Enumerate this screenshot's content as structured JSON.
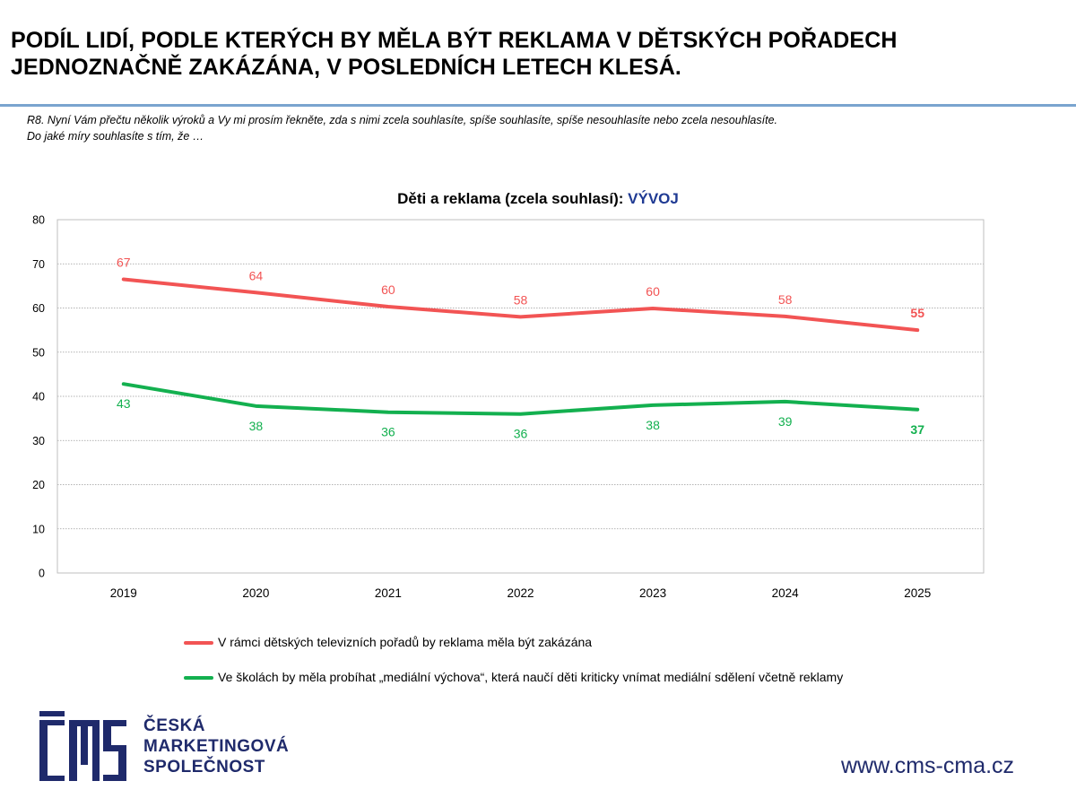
{
  "header": {
    "title_line1": "PODÍL LIDÍ, PODLE KTERÝCH BY MĚLA BÝT REKLAMA V DĚTSKÝCH POŘADECH",
    "title_line2": "JEDNOZNAČNĚ ZAKÁZÁNA, V POSLEDNÍCH LETECH KLESÁ.",
    "question_line1": "R8. Nyní Vám přečtu několik výroků a Vy mi prosím řekněte, zda s nimi zcela souhlasíte, spíše souhlasíte, spíše nesouhlasíte nebo zcela nesouhlasíte.",
    "question_line2": "Do jaké míry souhlasíte s tím, že …"
  },
  "chart_data": {
    "type": "line",
    "title": "Děti a reklama (zcela souhlasí): ",
    "title_accent": "VÝVOJ",
    "categories": [
      "2019",
      "2020",
      "2021",
      "2022",
      "2023",
      "2024",
      "2025"
    ],
    "ylim": [
      0,
      80
    ],
    "yticks": [
      0,
      10,
      20,
      30,
      40,
      50,
      60,
      70,
      80
    ],
    "grid": true,
    "series": [
      {
        "name": "V rámci dětských televizních pořadů by reklama měla být zakázána",
        "values": [
          66.5,
          63.5,
          60.3,
          58,
          59.9,
          58.1,
          55
        ],
        "labels": [
          "67",
          "64",
          "60",
          "58",
          "60",
          "58",
          "55"
        ],
        "label_position": "above",
        "color": "#f25454"
      },
      {
        "name": "Ve školách by měla probíhat „mediální výchova“, která naučí děti kriticky vnímat mediální sdělení včetně reklamy",
        "values": [
          42.8,
          37.8,
          36.4,
          36,
          38,
          38.8,
          37
        ],
        "labels": [
          "43",
          "38",
          "36",
          "36",
          "38",
          "39",
          "37"
        ],
        "label_position": "below",
        "color": "#13b04f"
      }
    ],
    "legend_position": "bottom"
  },
  "footer": {
    "logo_lines": [
      "ČESKÁ",
      "MARKETINGOVÁ",
      "SPOLEČNOST"
    ],
    "website": "www.cms-cma.cz",
    "brand_color": "#1f2a6b"
  }
}
